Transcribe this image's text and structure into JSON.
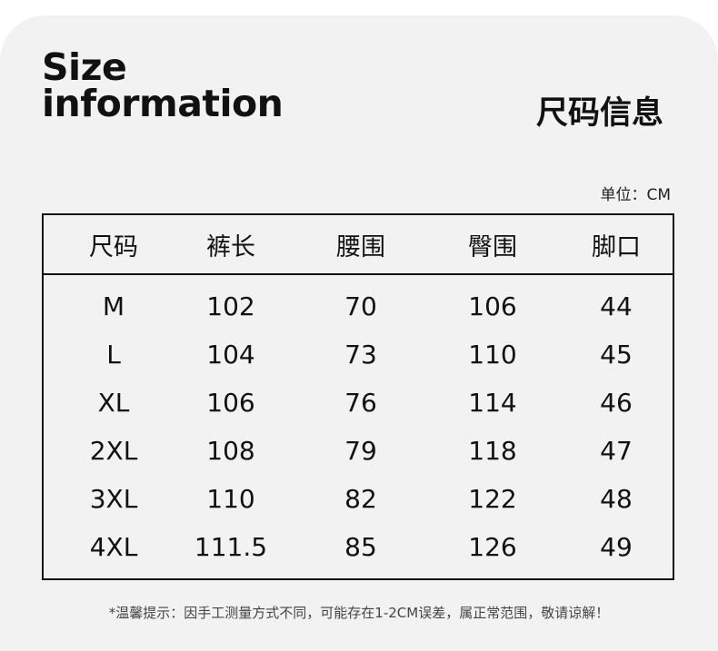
{
  "title_en_line1": "Size",
  "title_en_line2": "information",
  "title_cn": "尺码信息",
  "unit": "单位：CM",
  "table": {
    "headers": [
      "尺码",
      "裤长",
      "腰围",
      "臀围",
      "脚口"
    ],
    "rows": [
      [
        "M",
        "102",
        "70",
        "106",
        "44"
      ],
      [
        "L",
        "104",
        "73",
        "110",
        "45"
      ],
      [
        "XL",
        "106",
        "76",
        "114",
        "46"
      ],
      [
        "2XL",
        "108",
        "79",
        "118",
        "47"
      ],
      [
        "3XL",
        "110",
        "82",
        "122",
        "48"
      ],
      [
        "4XL",
        "111.5",
        "85",
        "126",
        "49"
      ]
    ]
  },
  "note": "*温馨提示：因手工测量方式不同，可能存在1-2CM误差，属正常范围，敬请谅解！"
}
